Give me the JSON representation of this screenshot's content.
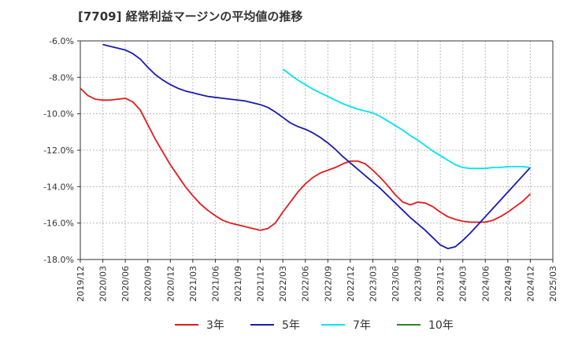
{
  "chart_data": {
    "type": "line",
    "title": "[7709]  経常利益マージンの平均値の推移",
    "ylim": [
      -18,
      -6
    ],
    "y_ticks": [
      "-6.0%",
      "-8.0%",
      "-10.0%",
      "-12.0%",
      "-14.0%",
      "-16.0%",
      "-18.0%"
    ],
    "y_tick_values": [
      -6,
      -8,
      -10,
      -12,
      -14,
      -16,
      -18
    ],
    "x_ticks": [
      "2019/12",
      "2020/03",
      "2020/06",
      "2020/09",
      "2020/12",
      "2021/03",
      "2021/06",
      "2021/09",
      "2021/12",
      "2022/03",
      "2022/06",
      "2022/09",
      "2022/12",
      "2023/03",
      "2023/06",
      "2023/09",
      "2023/12",
      "2024/03",
      "2024/06",
      "2024/09",
      "2024/12",
      "2025/03"
    ],
    "grid": true,
    "legend_position": "bottom",
    "series": [
      {
        "name": "3年",
        "color": "#e31a1c",
        "points": [
          [
            "2019/12",
            -8.6
          ],
          [
            "2020/01",
            -9.0
          ],
          [
            "2020/02",
            -9.2
          ],
          [
            "2020/03",
            -9.25
          ],
          [
            "2020/04",
            -9.25
          ],
          [
            "2020/05",
            -9.2
          ],
          [
            "2020/06",
            -9.15
          ],
          [
            "2020/07",
            -9.35
          ],
          [
            "2020/08",
            -9.8
          ],
          [
            "2020/09",
            -10.6
          ],
          [
            "2020/10",
            -11.4
          ],
          [
            "2020/11",
            -12.1
          ],
          [
            "2020/12",
            -12.8
          ],
          [
            "2021/01",
            -13.4
          ],
          [
            "2021/02",
            -14.0
          ],
          [
            "2021/03",
            -14.5
          ],
          [
            "2021/04",
            -14.95
          ],
          [
            "2021/05",
            -15.3
          ],
          [
            "2021/06",
            -15.6
          ],
          [
            "2021/07",
            -15.85
          ],
          [
            "2021/08",
            -16.0
          ],
          [
            "2021/09",
            -16.1
          ],
          [
            "2021/10",
            -16.2
          ],
          [
            "2021/11",
            -16.3
          ],
          [
            "2021/12",
            -16.4
          ],
          [
            "2022/01",
            -16.3
          ],
          [
            "2022/02",
            -16.0
          ],
          [
            "2022/03",
            -15.4
          ],
          [
            "2022/04",
            -14.85
          ],
          [
            "2022/05",
            -14.3
          ],
          [
            "2022/06",
            -13.85
          ],
          [
            "2022/07",
            -13.5
          ],
          [
            "2022/08",
            -13.25
          ],
          [
            "2022/09",
            -13.1
          ],
          [
            "2022/10",
            -12.95
          ],
          [
            "2022/11",
            -12.75
          ],
          [
            "2022/12",
            -12.6
          ],
          [
            "2023/01",
            -12.6
          ],
          [
            "2023/02",
            -12.75
          ],
          [
            "2023/03",
            -13.1
          ],
          [
            "2023/04",
            -13.5
          ],
          [
            "2023/05",
            -13.95
          ],
          [
            "2023/06",
            -14.45
          ],
          [
            "2023/07",
            -14.85
          ],
          [
            "2023/08",
            -15.0
          ],
          [
            "2023/09",
            -14.85
          ],
          [
            "2023/10",
            -14.9
          ],
          [
            "2023/11",
            -15.1
          ],
          [
            "2023/12",
            -15.4
          ],
          [
            "2024/01",
            -15.65
          ],
          [
            "2024/02",
            -15.8
          ],
          [
            "2024/03",
            -15.9
          ],
          [
            "2024/04",
            -15.95
          ],
          [
            "2024/05",
            -15.95
          ],
          [
            "2024/06",
            -15.95
          ],
          [
            "2024/07",
            -15.85
          ],
          [
            "2024/08",
            -15.65
          ],
          [
            "2024/09",
            -15.4
          ],
          [
            "2024/10",
            -15.1
          ],
          [
            "2024/11",
            -14.8
          ],
          [
            "2024/12",
            -14.4
          ]
        ]
      },
      {
        "name": "5年",
        "color": "#1a1ab4",
        "points": [
          [
            "2020/03",
            -6.2
          ],
          [
            "2020/04",
            -6.3
          ],
          [
            "2020/05",
            -6.4
          ],
          [
            "2020/06",
            -6.5
          ],
          [
            "2020/07",
            -6.7
          ],
          [
            "2020/08",
            -7.0
          ],
          [
            "2020/09",
            -7.45
          ],
          [
            "2020/10",
            -7.85
          ],
          [
            "2020/11",
            -8.15
          ],
          [
            "2020/12",
            -8.4
          ],
          [
            "2021/01",
            -8.6
          ],
          [
            "2021/02",
            -8.75
          ],
          [
            "2021/03",
            -8.85
          ],
          [
            "2021/04",
            -8.95
          ],
          [
            "2021/05",
            -9.05
          ],
          [
            "2021/06",
            -9.1
          ],
          [
            "2021/07",
            -9.15
          ],
          [
            "2021/08",
            -9.2
          ],
          [
            "2021/09",
            -9.25
          ],
          [
            "2021/10",
            -9.3
          ],
          [
            "2021/11",
            -9.4
          ],
          [
            "2021/12",
            -9.5
          ],
          [
            "2022/01",
            -9.65
          ],
          [
            "2022/02",
            -9.9
          ],
          [
            "2022/03",
            -10.2
          ],
          [
            "2022/04",
            -10.5
          ],
          [
            "2022/05",
            -10.7
          ],
          [
            "2022/06",
            -10.85
          ],
          [
            "2022/07",
            -11.05
          ],
          [
            "2022/08",
            -11.3
          ],
          [
            "2022/09",
            -11.6
          ],
          [
            "2022/10",
            -11.95
          ],
          [
            "2022/11",
            -12.35
          ],
          [
            "2022/12",
            -12.7
          ],
          [
            "2023/01",
            -13.05
          ],
          [
            "2023/02",
            -13.4
          ],
          [
            "2023/03",
            -13.75
          ],
          [
            "2023/04",
            -14.1
          ],
          [
            "2023/05",
            -14.5
          ],
          [
            "2023/06",
            -14.9
          ],
          [
            "2023/07",
            -15.3
          ],
          [
            "2023/08",
            -15.7
          ],
          [
            "2023/09",
            -16.05
          ],
          [
            "2023/10",
            -16.4
          ],
          [
            "2023/11",
            -16.8
          ],
          [
            "2023/12",
            -17.2
          ],
          [
            "2024/01",
            -17.4
          ],
          [
            "2024/02",
            -17.3
          ],
          [
            "2024/03",
            -16.95
          ],
          [
            "2024/04",
            -16.55
          ],
          [
            "2024/05",
            -16.1
          ],
          [
            "2024/06",
            -15.65
          ],
          [
            "2024/07",
            -15.2
          ],
          [
            "2024/08",
            -14.75
          ],
          [
            "2024/09",
            -14.3
          ],
          [
            "2024/10",
            -13.85
          ],
          [
            "2024/11",
            -13.4
          ],
          [
            "2024/12",
            -12.95
          ]
        ]
      },
      {
        "name": "7年",
        "color": "#00e5ee",
        "points": [
          [
            "2022/03",
            -7.55
          ],
          [
            "2022/04",
            -7.85
          ],
          [
            "2022/05",
            -8.15
          ],
          [
            "2022/06",
            -8.4
          ],
          [
            "2022/07",
            -8.65
          ],
          [
            "2022/08",
            -8.85
          ],
          [
            "2022/09",
            -9.05
          ],
          [
            "2022/10",
            -9.25
          ],
          [
            "2022/11",
            -9.45
          ],
          [
            "2022/12",
            -9.6
          ],
          [
            "2023/01",
            -9.75
          ],
          [
            "2023/02",
            -9.85
          ],
          [
            "2023/03",
            -9.95
          ],
          [
            "2023/04",
            -10.15
          ],
          [
            "2023/05",
            -10.4
          ],
          [
            "2023/06",
            -10.65
          ],
          [
            "2023/07",
            -10.9
          ],
          [
            "2023/08",
            -11.2
          ],
          [
            "2023/09",
            -11.45
          ],
          [
            "2023/10",
            -11.75
          ],
          [
            "2023/11",
            -12.05
          ],
          [
            "2023/12",
            -12.3
          ],
          [
            "2024/01",
            -12.55
          ],
          [
            "2024/02",
            -12.8
          ],
          [
            "2024/03",
            -12.95
          ],
          [
            "2024/04",
            -13.0
          ],
          [
            "2024/05",
            -13.0
          ],
          [
            "2024/06",
            -13.0
          ],
          [
            "2024/07",
            -12.95
          ],
          [
            "2024/08",
            -12.95
          ],
          [
            "2024/09",
            -12.9
          ],
          [
            "2024/10",
            -12.9
          ],
          [
            "2024/11",
            -12.9
          ],
          [
            "2024/12",
            -12.95
          ]
        ]
      },
      {
        "name": "10年",
        "color": "#228b22",
        "points": []
      }
    ]
  }
}
